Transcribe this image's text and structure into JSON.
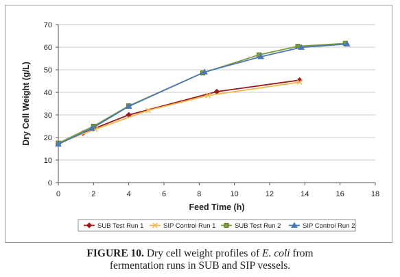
{
  "chart_data": {
    "type": "line",
    "xlabel": "Feed Time (h)",
    "ylabel": "Dry Cell Weight (g/L)",
    "xlim": [
      0,
      18
    ],
    "ylim": [
      0,
      70
    ],
    "xticks": [
      0,
      2,
      4,
      6,
      8,
      10,
      12,
      14,
      16,
      18
    ],
    "yticks": [
      0,
      10,
      20,
      30,
      40,
      50,
      60,
      70
    ],
    "grid": "horizontal",
    "legend_position": "bottom",
    "series": [
      {
        "name": "SUB Test Run 1",
        "color": "#9b1b1e",
        "marker": "diamond",
        "points": [
          [
            0,
            17.2
          ],
          [
            1.4,
            22.0
          ],
          [
            4.0,
            30.0
          ],
          [
            9.0,
            40.3
          ],
          [
            13.7,
            45.4
          ]
        ]
      },
      {
        "name": "SIP Control Run 1",
        "color": "#f0b84c",
        "marker": "x",
        "points": [
          [
            0,
            17.6
          ],
          [
            2.1,
            23.6
          ],
          [
            5.1,
            32.0
          ],
          [
            8.5,
            38.6
          ],
          [
            13.7,
            44.5
          ]
        ]
      },
      {
        "name": "SUB Test Run 2",
        "color": "#7f9a3d",
        "marker": "square",
        "points": [
          [
            0,
            17.5
          ],
          [
            2.0,
            25.0
          ],
          [
            4.0,
            34.0
          ],
          [
            8.2,
            48.6
          ],
          [
            11.4,
            56.6
          ],
          [
            13.6,
            60.4
          ],
          [
            16.3,
            61.7
          ]
        ]
      },
      {
        "name": "SIP Control Run 2",
        "color": "#4a78b5",
        "marker": "triangle",
        "points": [
          [
            0,
            17.0
          ],
          [
            1.9,
            24.0
          ],
          [
            4.0,
            33.8
          ],
          [
            8.3,
            49.0
          ],
          [
            11.5,
            55.8
          ],
          [
            13.8,
            59.9
          ],
          [
            16.4,
            61.4
          ]
        ]
      }
    ]
  },
  "caption": {
    "label": "FIGURE 10.",
    "text_before": " Dry cell weight profiles of ",
    "italic": "E. coli",
    "text_after": " from",
    "line2": "fermentation runs in SUB and SIP vessels."
  }
}
